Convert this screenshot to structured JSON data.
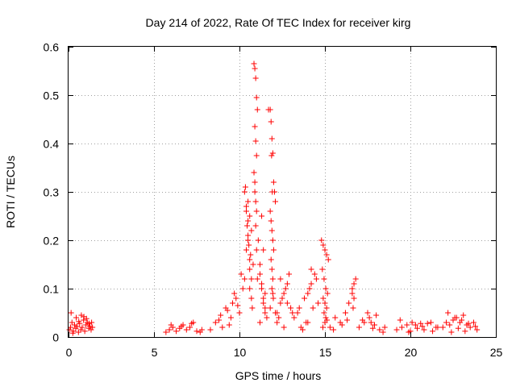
{
  "chart_data": {
    "type": "scatter",
    "title": "Day 214 of 2022, Rate Of TEC Index for receiver kirg",
    "xlabel": "GPS time / hours",
    "ylabel": "ROTI / TECUs",
    "xlim": [
      0,
      25
    ],
    "ylim": [
      0,
      0.6
    ],
    "xticks": [
      0,
      5,
      10,
      15,
      20,
      25
    ],
    "yticks": [
      0,
      0.1,
      0.2,
      0.3,
      0.4,
      0.5,
      0.6
    ],
    "xtick_labels": [
      "0",
      "5",
      "10",
      "15",
      "20",
      "25"
    ],
    "ytick_labels": [
      "0",
      "0.1",
      "0.2",
      "0.3",
      "0.4",
      "0.5",
      "0.6"
    ],
    "grid": true,
    "marker": "+",
    "color": "#ff0000",
    "series": [
      {
        "x": [
          0.05,
          0.12,
          0.2,
          0.28,
          0.35,
          0.42,
          0.5,
          0.58,
          0.65,
          0.72,
          0.8,
          0.88,
          0.95,
          1.02,
          1.1,
          1.18,
          1.25,
          1.32,
          1.4,
          0.15,
          0.45,
          0.75,
          1.05,
          1.35,
          0.25,
          0.6,
          0.9,
          1.2,
          5.7,
          5.9,
          6.1,
          6.3,
          6.5,
          6.7,
          6.9,
          7.1,
          7.3,
          7.5,
          7.7,
          6.0,
          6.6,
          7.2,
          7.8,
          8.3,
          8.6,
          8.9,
          9.2,
          9.4,
          9.6,
          9.8,
          10.0,
          10.2,
          8.8,
          9.3,
          9.7,
          10.1,
          9.0,
          9.5,
          9.9,
          10.3,
          10.4,
          10.5,
          10.6,
          10.7,
          10.8,
          10.3,
          10.4,
          10.5,
          10.6,
          10.7,
          10.35,
          10.45,
          10.55,
          10.65,
          10.75,
          10.4,
          10.5,
          10.6,
          10.7,
          10.5,
          10.6,
          10.85,
          10.9,
          10.95,
          11.0,
          11.05,
          10.9,
          10.95,
          11.0,
          10.85,
          10.9,
          10.95,
          11.0,
          10.95,
          11.0,
          10.9,
          11.05,
          11.1,
          11.2,
          11.3,
          11.4,
          11.5,
          11.6,
          11.2,
          11.3,
          11.4,
          11.5,
          11.3,
          11.4,
          11.2,
          11.5,
          11.7,
          11.8,
          11.85,
          11.9,
          11.95,
          12.0,
          12.05,
          12.1,
          11.8,
          11.85,
          11.9,
          11.95,
          12.0,
          11.85,
          11.9,
          11.95,
          11.9,
          11.95,
          11.88,
          11.92,
          11.98,
          11.8,
          12.1,
          12.2,
          12.4,
          12.6,
          12.8,
          13.0,
          12.3,
          12.5,
          12.7,
          12.9,
          12.2,
          12.6,
          13.1,
          12.4,
          12.8,
          13.2,
          13.5,
          13.8,
          14.0,
          14.2,
          14.4,
          14.6,
          13.4,
          13.9,
          14.1,
          14.3,
          13.6,
          14.5,
          14.2,
          14.0,
          13.7,
          14.8,
          14.9,
          15.0,
          15.1,
          15.2,
          14.85,
          14.95,
          15.05,
          15.15,
          14.9,
          15.0,
          15.1,
          14.95,
          15.05,
          15.0,
          14.88,
          15.12,
          15.3,
          15.6,
          15.9,
          16.2,
          16.4,
          16.6,
          16.7,
          16.8,
          16.6,
          16.7,
          16.65,
          15.5,
          16.0,
          16.3,
          17.0,
          17.3,
          17.6,
          17.9,
          18.2,
          18.5,
          17.2,
          17.7,
          18.0,
          18.4,
          17.5,
          17.8,
          19.2,
          19.5,
          19.8,
          20.1,
          20.4,
          20.7,
          21.0,
          21.3,
          21.6,
          19.4,
          19.9,
          20.3,
          20.8,
          21.2,
          21.5,
          20.0,
          20.6,
          21.9,
          22.1,
          22.3,
          22.5,
          22.7,
          22.9,
          23.1,
          23.3,
          23.5,
          23.7,
          23.9,
          22.2,
          22.6,
          23.0,
          23.4,
          23.8,
          22.4,
          22.8,
          23.2
        ],
        "y": [
          0.015,
          0.02,
          0.03,
          0.012,
          0.025,
          0.018,
          0.022,
          0.01,
          0.028,
          0.015,
          0.02,
          0.035,
          0.012,
          0.025,
          0.03,
          0.018,
          0.022,
          0.015,
          0.02,
          0.05,
          0.04,
          0.045,
          0.038,
          0.03,
          0.008,
          0.032,
          0.042,
          0.028,
          0.01,
          0.015,
          0.02,
          0.012,
          0.018,
          0.025,
          0.015,
          0.02,
          0.03,
          0.012,
          0.01,
          0.025,
          0.022,
          0.028,
          0.015,
          0.015,
          0.03,
          0.045,
          0.06,
          0.025,
          0.07,
          0.08,
          0.05,
          0.1,
          0.035,
          0.055,
          0.09,
          0.13,
          0.02,
          0.04,
          0.065,
          0.12,
          0.18,
          0.2,
          0.25,
          0.22,
          0.15,
          0.3,
          0.26,
          0.28,
          0.1,
          0.08,
          0.31,
          0.23,
          0.19,
          0.17,
          0.06,
          0.27,
          0.21,
          0.16,
          0.12,
          0.24,
          0.14,
          0.565,
          0.555,
          0.535,
          0.495,
          0.47,
          0.435,
          0.405,
          0.375,
          0.34,
          0.3,
          0.28,
          0.26,
          0.23,
          0.18,
          0.32,
          0.12,
          0.2,
          0.15,
          0.1,
          0.08,
          0.06,
          0.04,
          0.13,
          0.11,
          0.18,
          0.09,
          0.25,
          0.07,
          0.03,
          0.05,
          0.47,
          0.47,
          0.445,
          0.41,
          0.38,
          0.32,
          0.3,
          0.28,
          0.26,
          0.24,
          0.22,
          0.2,
          0.18,
          0.16,
          0.14,
          0.12,
          0.1,
          0.09,
          0.375,
          0.3,
          0.08,
          0.06,
          0.05,
          0.05,
          0.07,
          0.09,
          0.11,
          0.06,
          0.04,
          0.08,
          0.1,
          0.13,
          0.03,
          0.02,
          0.05,
          0.12,
          0.07,
          0.04,
          0.06,
          0.08,
          0.09,
          0.11,
          0.13,
          0.07,
          0.05,
          0.03,
          0.1,
          0.06,
          0.02,
          0.12,
          0.14,
          0.03,
          0.015,
          0.2,
          0.19,
          0.18,
          0.17,
          0.16,
          0.14,
          0.12,
          0.1,
          0.09,
          0.08,
          0.07,
          0.06,
          0.05,
          0.04,
          0.03,
          0.02,
          0.035,
          0.02,
          0.04,
          0.03,
          0.05,
          0.07,
          0.09,
          0.11,
          0.12,
          0.1,
          0.08,
          0.06,
          0.015,
          0.025,
          0.035,
          0.02,
          0.03,
          0.04,
          0.025,
          0.015,
          0.02,
          0.035,
          0.03,
          0.045,
          0.01,
          0.05,
          0.018,
          0.015,
          0.02,
          0.025,
          0.03,
          0.018,
          0.022,
          0.028,
          0.012,
          0.02,
          0.035,
          0.01,
          0.025,
          0.015,
          0.03,
          0.02,
          0.012,
          0.028,
          0.02,
          0.03,
          0.025,
          0.035,
          0.04,
          0.03,
          0.045,
          0.025,
          0.02,
          0.03,
          0.015,
          0.05,
          0.04,
          0.035,
          0.028,
          0.022,
          0.01,
          0.018,
          0.012
        ]
      }
    ]
  }
}
